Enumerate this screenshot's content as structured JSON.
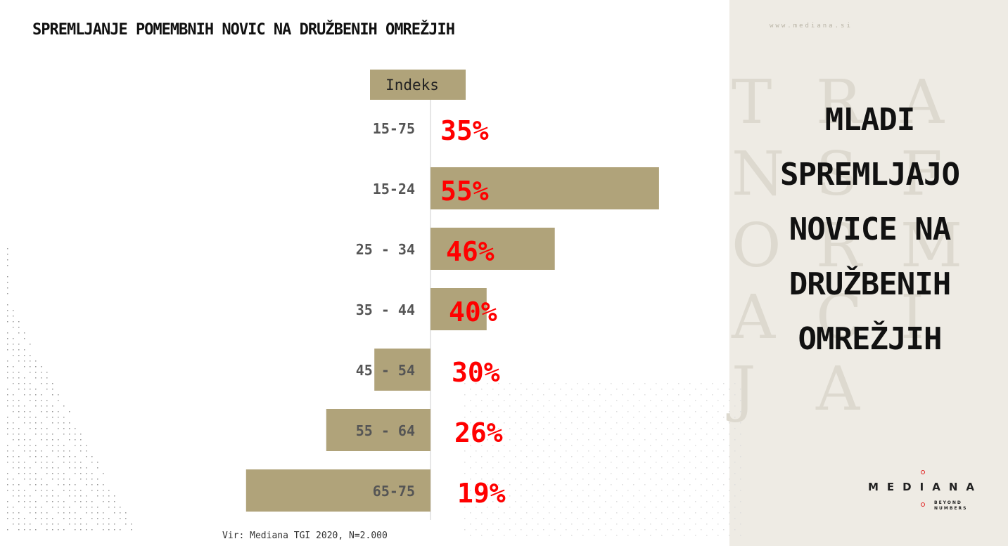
{
  "title": "SPREMLJANJE POMEMBNIH NOVIC NA DRUŽBENIH OMREŽJIH",
  "chart_data": {
    "type": "bar",
    "orientation": "horizontal-diverging",
    "header_label": "Indeks",
    "categories": [
      "15-75",
      "15-24",
      "25 - 34",
      "35 - 44",
      "45 - 54",
      "55 - 64",
      "65-75"
    ],
    "values": [
      35,
      55,
      46,
      40,
      30,
      26,
      19
    ],
    "value_labels": [
      "35%",
      "55%",
      "46%",
      "40%",
      "30%",
      "26%",
      "19%"
    ],
    "index": [
      100,
      157,
      131,
      114,
      86,
      74,
      54
    ],
    "baseline_index": 100
  },
  "source": "Vir: Mediana TGI 2020, N=2.000",
  "website": "www.mediana.si",
  "background_letters": [
    [
      "T",
      "R",
      "A"
    ],
    [
      "N",
      "S",
      "F"
    ],
    [
      "O",
      "R",
      "M"
    ],
    [
      "A",
      "C",
      "I"
    ],
    [
      "J",
      "A",
      ""
    ]
  ],
  "headline": [
    "MLADI",
    "SPREMLJAJO",
    "NOVICE NA",
    "DRUŽBENIH",
    "OMREŽJIH"
  ],
  "logo": {
    "word": "MEDIANA",
    "tagline_1": "BEYOND",
    "tagline_2": "NUMBERS"
  },
  "colors": {
    "bar": "#b0a37a",
    "value_label": "#ff0000",
    "category_label": "#555555",
    "panel_bg": "#eeebe4",
    "axis": "#cccccc"
  }
}
